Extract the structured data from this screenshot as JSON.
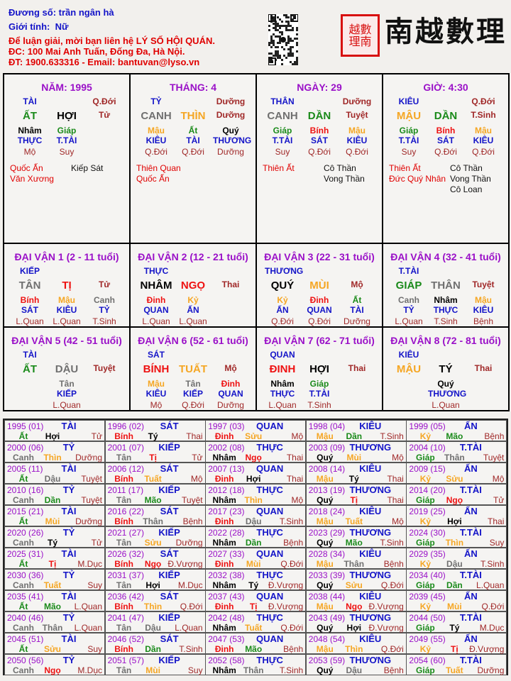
{
  "header": {
    "name_line": "Đương số: trần ngân hà",
    "gender_label": "Giới tính:",
    "gender_value": "Nữ",
    "contact_lines": [
      "Để luận giải, mời bạn liên hệ LÝ SỐ HỘI QUÁN.",
      "ĐC: 100 Mai Anh Tuấn, Đống Đa, Hà Nội.",
      "ĐT: 1900.633316 - Email: bantuvan@lyso.vn"
    ],
    "logo_text": "南越數理",
    "seal_text": "南越數理"
  },
  "element_colors": {
    "wood": "#1a8a1a",
    "fire": "#ee1111",
    "earth": "#f5a623",
    "metal": "#707070",
    "water": "#000000"
  },
  "element_of": {
    "giáp": "wood",
    "ất": "wood",
    "dần": "wood",
    "mão": "wood",
    "bính": "fire",
    "đinh": "fire",
    "tị": "fire",
    "ngọ": "fire",
    "mậu": "earth",
    "kỷ": "earth",
    "thìn": "earth",
    "tuất": "earth",
    "sửu": "earth",
    "mùi": "earth",
    "canh": "metal",
    "tân": "metal",
    "thân": "metal",
    "dậu": "metal",
    "nhâm": "water",
    "quý": "water",
    "tý": "water",
    "hợi": "water"
  },
  "pillars": [
    {
      "title": "NĂM: 1995",
      "star": "TÀI",
      "stage_top": "Q.Đới",
      "stem": "ẤT",
      "branch": "HỢI",
      "stage": "Tử",
      "hidden": [
        [
          "Nhâm",
          "THỰC",
          "Mộ"
        ],
        [
          "Giáp",
          "T.TÀI",
          "Suy"
        ],
        null
      ],
      "good": [
        "Quốc Ấn",
        "Văn Xương"
      ],
      "bad": [
        "Kiếp Sát"
      ]
    },
    {
      "title": "THÁNG: 4",
      "star": "TỶ",
      "stage_top": "Dưỡng",
      "stem": "CANH",
      "branch": "THÌN",
      "stage": "Dưỡng",
      "hidden": [
        [
          "Mậu",
          "KIÊU",
          "Q.Đới"
        ],
        [
          "Ất",
          "TÀI",
          "Q.Đới"
        ],
        [
          "Quý",
          "THƯƠNG",
          "Dưỡng"
        ]
      ],
      "good": [
        "Thiên Quan",
        "Quốc Ấn"
      ],
      "bad": []
    },
    {
      "title": "NGÀY: 29",
      "star": "THÂN",
      "stage_top": "Dưỡng",
      "stem": "CANH",
      "branch": "DẦN",
      "stage": "Tuyệt",
      "hidden": [
        [
          "Giáp",
          "T.TÀI",
          "Suy"
        ],
        [
          "Bính",
          "SÁT",
          "Q.Đới"
        ],
        [
          "Mậu",
          "KIÊU",
          "Q.Đới"
        ]
      ],
      "good": [
        "Thiên Ất"
      ],
      "bad": [
        "Cô Thần",
        "Vong Thần"
      ]
    },
    {
      "title": "GIỜ: 4:30",
      "star": "KIÊU",
      "stage_top": "Q.Đới",
      "stem": "MẬU",
      "branch": "DẦN",
      "stage": "T.Sinh",
      "hidden": [
        [
          "Giáp",
          "T.TÀI",
          "Suy"
        ],
        [
          "Bính",
          "SÁT",
          "Q.Đới"
        ],
        [
          "Mậu",
          "KIÊU",
          "Q.Đới"
        ]
      ],
      "good": [
        "Thiên Ất",
        "Đức Quý Nhân"
      ],
      "bad": [
        "Cô Thần",
        "Vong Thần",
        "Cô Loan"
      ]
    }
  ],
  "dai_van": [
    {
      "title": "ĐẠI VẬN 1 (2 - 11 tuổi)",
      "star": "KIẾP",
      "stem": "TÂN",
      "branch": "TỊ",
      "stage": "Tử",
      "hidden": [
        [
          "Bính",
          "SÁT",
          "L.Quan"
        ],
        [
          "Mậu",
          "KIÊU",
          "L.Quan"
        ],
        [
          "Canh",
          "TỶ",
          "T.Sinh"
        ]
      ]
    },
    {
      "title": "ĐẠI VẬN 2 (12 - 21 tuổi)",
      "star": "THỰC",
      "stem": "NHÂM",
      "branch": "NGỌ",
      "stage": "Thai",
      "hidden": [
        [
          "Đinh",
          "QUAN",
          "L.Quan"
        ],
        [
          "Kỷ",
          "ẤN",
          "L.Quan"
        ],
        null
      ]
    },
    {
      "title": "ĐẠI VẬN 3 (22 - 31 tuổi)",
      "star": "THƯƠNG",
      "stem": "QUÝ",
      "branch": "MÙI",
      "stage": "Mộ",
      "hidden": [
        [
          "Kỷ",
          "ẤN",
          "Q.Đới"
        ],
        [
          "Đinh",
          "QUAN",
          "Q.Đới"
        ],
        [
          "Ất",
          "TÀI",
          "Dưỡng"
        ]
      ]
    },
    {
      "title": "ĐẠI VẬN 4 (32 - 41 tuổi)",
      "star": "T.TÀI",
      "stem": "GIÁP",
      "branch": "THÂN",
      "stage": "Tuyệt",
      "hidden": [
        [
          "Canh",
          "TỶ",
          "L.Quan"
        ],
        [
          "Nhâm",
          "THỰC",
          "T.Sinh"
        ],
        [
          "Mậu",
          "KIÊU",
          "Bệnh"
        ]
      ]
    },
    {
      "title": "ĐẠI VẬN 5 (42 - 51 tuổi)",
      "star": "TÀI",
      "stem": "ẤT",
      "branch": "DẬU",
      "stage": "Tuyệt",
      "hidden": [
        null,
        [
          "Tân",
          "KIẾP",
          "L.Quan"
        ],
        null
      ]
    },
    {
      "title": "ĐẠI VẬN 6 (52 - 61 tuổi)",
      "star": "SÁT",
      "stem": "BÍNH",
      "branch": "TUẤT",
      "stage": "Mộ",
      "hidden": [
        [
          "Mậu",
          "KIÊU",
          "Mộ"
        ],
        [
          "Tân",
          "KIẾP",
          "Q.Đới"
        ],
        [
          "Đinh",
          "QUAN",
          "Dưỡng"
        ]
      ]
    },
    {
      "title": "ĐẠI VẬN 7 (62 - 71 tuổi)",
      "star": "QUAN",
      "stem": "ĐINH",
      "branch": "HỢI",
      "stage": "Thai",
      "hidden": [
        [
          "Nhâm",
          "THỰC",
          "L.Quan"
        ],
        [
          "Giáp",
          "T.TÀI",
          "T.Sinh"
        ],
        null
      ]
    },
    {
      "title": "ĐẠI VẬN 8 (72 - 81 tuổi)",
      "star": "KIÊU",
      "stem": "MẬU",
      "branch": "TÝ",
      "stage": "Thai",
      "hidden": [
        null,
        [
          "Quý",
          "THƯƠNG",
          "L.Quan"
        ],
        null
      ]
    }
  ],
  "years": [
    [
      "1995 (01)",
      "TÀI",
      "Ất",
      "Hợi",
      "Tử"
    ],
    [
      "1996 (02)",
      "SÁT",
      "Bính",
      "Tý",
      "Thai"
    ],
    [
      "1997 (03)",
      "QUAN",
      "Đinh",
      "Sửu",
      "Mộ"
    ],
    [
      "1998 (04)",
      "KIÊU",
      "Mậu",
      "Dần",
      "T.Sinh"
    ],
    [
      "1999 (05)",
      "ẤN",
      "Kỷ",
      "Mão",
      "Bệnh"
    ],
    [
      "2000 (06)",
      "TỶ",
      "Canh",
      "Thìn",
      "Dưỡng"
    ],
    [
      "2001 (07)",
      "KIẾP",
      "Tân",
      "Tị",
      "Tử"
    ],
    [
      "2002 (08)",
      "THỰC",
      "Nhâm",
      "Ngọ",
      "Thai"
    ],
    [
      "2003 (09)",
      "THƯƠNG",
      "Quý",
      "Mùi",
      "Mộ"
    ],
    [
      "2004 (10)",
      "T.TÀI",
      "Giáp",
      "Thân",
      "Tuyệt"
    ],
    [
      "2005 (11)",
      "TÀI",
      "Ất",
      "Dậu",
      "Tuyệt"
    ],
    [
      "2006 (12)",
      "SÁT",
      "Bính",
      "Tuất",
      "Mộ"
    ],
    [
      "2007 (13)",
      "QUAN",
      "Đinh",
      "Hợi",
      "Thai"
    ],
    [
      "2008 (14)",
      "KIÊU",
      "Mậu",
      "Tý",
      "Thai"
    ],
    [
      "2009 (15)",
      "ẤN",
      "Kỷ",
      "Sửu",
      "Mộ"
    ],
    [
      "2010 (16)",
      "TỶ",
      "Canh",
      "Dần",
      "Tuyệt"
    ],
    [
      "2011 (17)",
      "KIẾP",
      "Tân",
      "Mão",
      "Tuyệt"
    ],
    [
      "2012 (18)",
      "THỰC",
      "Nhâm",
      "Thìn",
      "Mộ"
    ],
    [
      "2013 (19)",
      "THƯƠNG",
      "Quý",
      "Tị",
      "Thai"
    ],
    [
      "2014 (20)",
      "T.TÀI",
      "Giáp",
      "Ngọ",
      "Tử"
    ],
    [
      "2015 (21)",
      "TÀI",
      "Ất",
      "Mùi",
      "Dưỡng"
    ],
    [
      "2016 (22)",
      "SÁT",
      "Bính",
      "Thân",
      "Bệnh"
    ],
    [
      "2017 (23)",
      "QUAN",
      "Đinh",
      "Dậu",
      "T.Sinh"
    ],
    [
      "2018 (24)",
      "KIÊU",
      "Mậu",
      "Tuất",
      "Mộ"
    ],
    [
      "2019 (25)",
      "ẤN",
      "Kỷ",
      "Hợi",
      "Thai"
    ],
    [
      "2020 (26)",
      "TỶ",
      "Canh",
      "Tý",
      "Tử"
    ],
    [
      "2021 (27)",
      "KIẾP",
      "Tân",
      "Sửu",
      "Dưỡng"
    ],
    [
      "2022 (28)",
      "THỰC",
      "Nhâm",
      "Dần",
      "Bệnh"
    ],
    [
      "2023 (29)",
      "THƯƠNG",
      "Quý",
      "Mão",
      "T.Sinh"
    ],
    [
      "2024 (30)",
      "T.TÀI",
      "Giáp",
      "Thìn",
      "Suy"
    ],
    [
      "2025 (31)",
      "TÀI",
      "Ất",
      "Tị",
      "M.Dục"
    ],
    [
      "2026 (32)",
      "SÁT",
      "Bính",
      "Ngọ",
      "Đ.Vượng"
    ],
    [
      "2027 (33)",
      "QUAN",
      "Đinh",
      "Mùi",
      "Q.Đới"
    ],
    [
      "2028 (34)",
      "KIÊU",
      "Mậu",
      "Thân",
      "Bệnh"
    ],
    [
      "2029 (35)",
      "ẤN",
      "Kỷ",
      "Dậu",
      "T.Sinh"
    ],
    [
      "2030 (36)",
      "TỶ",
      "Canh",
      "Tuất",
      "Suy"
    ],
    [
      "2031 (37)",
      "KIẾP",
      "Tân",
      "Hợi",
      "M.Dục"
    ],
    [
      "2032 (38)",
      "THỰC",
      "Nhâm",
      "Tý",
      "Đ.Vượng"
    ],
    [
      "2033 (39)",
      "THƯƠNG",
      "Quý",
      "Sửu",
      "Q.Đới"
    ],
    [
      "2034 (40)",
      "T.TÀI",
      "Giáp",
      "Dần",
      "L.Quan"
    ],
    [
      "2035 (41)",
      "TÀI",
      "Ất",
      "Mão",
      "L.Quan"
    ],
    [
      "2036 (42)",
      "SÁT",
      "Bính",
      "Thìn",
      "Q.Đới"
    ],
    [
      "2037 (43)",
      "QUAN",
      "Đinh",
      "Tị",
      "Đ.Vượng"
    ],
    [
      "2038 (44)",
      "KIÊU",
      "Mậu",
      "Ngọ",
      "Đ.Vượng"
    ],
    [
      "2039 (45)",
      "ẤN",
      "Kỷ",
      "Mùi",
      "Q.Đới"
    ],
    [
      "2040 (46)",
      "TỶ",
      "Canh",
      "Thân",
      "L.Quan"
    ],
    [
      "2041 (47)",
      "KIẾP",
      "Tân",
      "Dậu",
      "L.Quan"
    ],
    [
      "2042 (48)",
      "THỰC",
      "Nhâm",
      "Tuất",
      "Q.Đới"
    ],
    [
      "2043 (49)",
      "THƯƠNG",
      "Quý",
      "Hợi",
      "Đ.Vượng"
    ],
    [
      "2044 (50)",
      "T.TÀI",
      "Giáp",
      "Tý",
      "M.Dục"
    ],
    [
      "2045 (51)",
      "TÀI",
      "Ất",
      "Sửu",
      "Suy"
    ],
    [
      "2046 (52)",
      "SÁT",
      "Bính",
      "Dần",
      "T.Sinh"
    ],
    [
      "2047 (53)",
      "QUAN",
      "Đinh",
      "Mão",
      "Bệnh"
    ],
    [
      "2048 (54)",
      "KIÊU",
      "Mậu",
      "Thìn",
      "Q.Đới"
    ],
    [
      "2049 (55)",
      "ẤN",
      "Kỷ",
      "Tị",
      "Đ.Vượng"
    ],
    [
      "2050 (56)",
      "TỶ",
      "Canh",
      "Ngọ",
      "M.Dục"
    ],
    [
      "2051 (57)",
      "KIẾP",
      "Tân",
      "Mùi",
      "Suy"
    ],
    [
      "2052 (58)",
      "THỰC",
      "Nhâm",
      "Thân",
      "T.Sinh"
    ],
    [
      "2053 (59)",
      "THƯƠNG",
      "Quý",
      "Dậu",
      "Bệnh"
    ],
    [
      "2054 (60)",
      "T.TÀI",
      "Giáp",
      "Tuất",
      "Dưỡng"
    ]
  ]
}
